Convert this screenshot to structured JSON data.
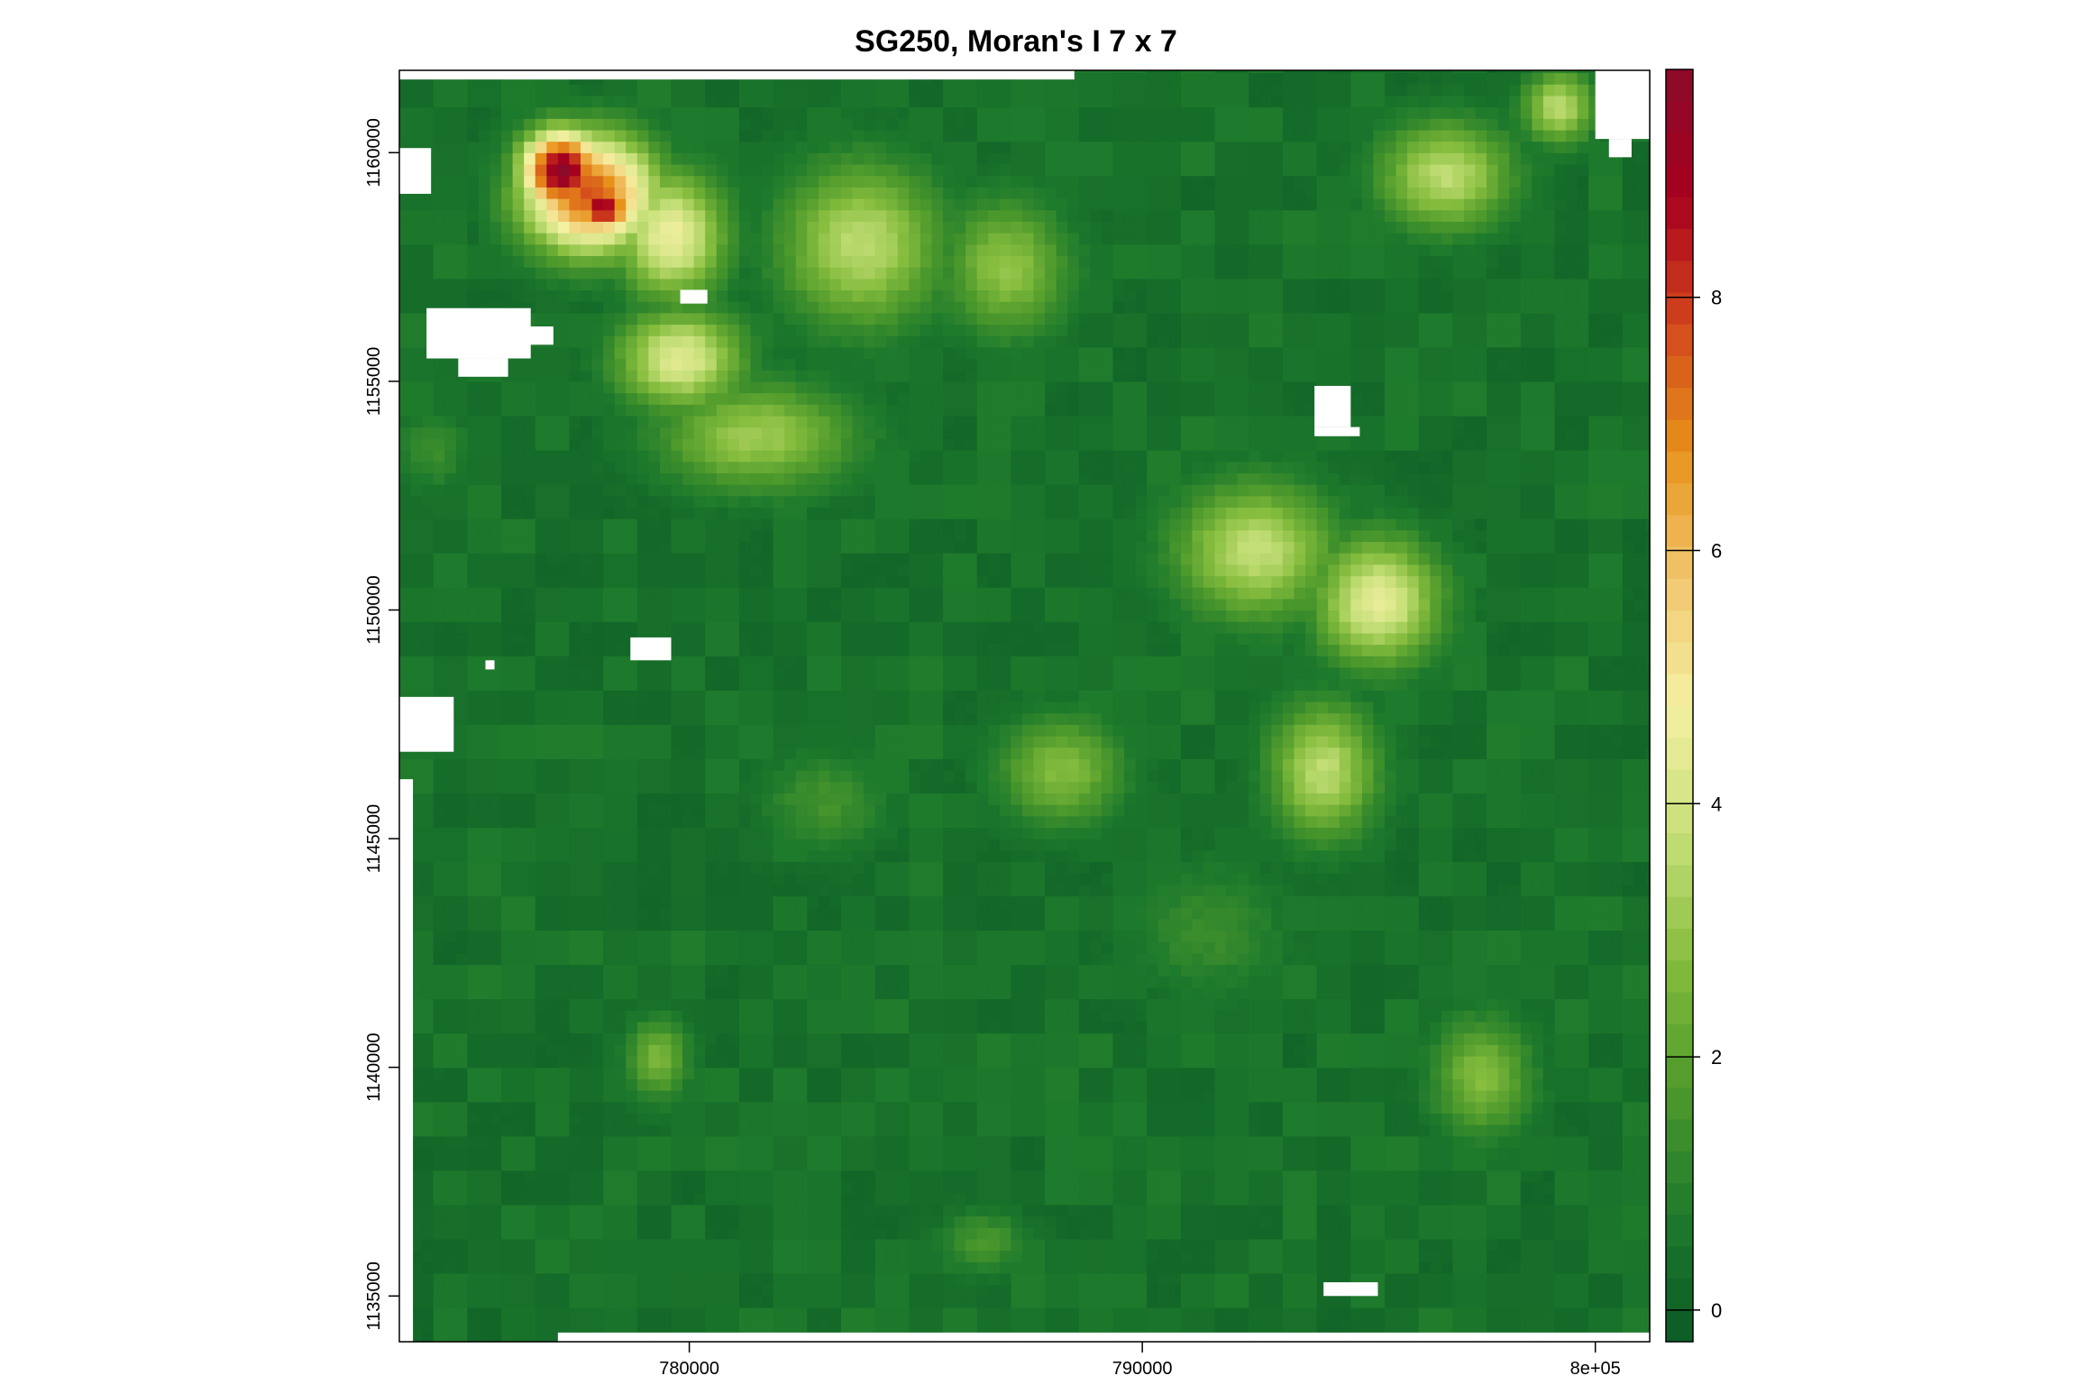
{
  "chart_data": {
    "type": "heatmap",
    "title": "SG250, Moran's I 7 x 7",
    "xlabel": "",
    "ylabel": "",
    "xlim": [
      773600,
      801200
    ],
    "ylim": [
      1134000,
      1161800
    ],
    "x_ticks": [
      {
        "value": 780000,
        "label": "780000"
      },
      {
        "value": 790000,
        "label": "790000"
      },
      {
        "value": 800000,
        "label": "8e+05"
      }
    ],
    "y_ticks": [
      {
        "value": 1135000,
        "label": "1135000"
      },
      {
        "value": 1140000,
        "label": "1140000"
      },
      {
        "value": 1145000,
        "label": "1145000"
      },
      {
        "value": 1150000,
        "label": "1150000"
      },
      {
        "value": 1155000,
        "label": "1155000"
      },
      {
        "value": 1160000,
        "label": "1160000"
      }
    ],
    "colorbar": {
      "range": [
        -0.25,
        9.8
      ],
      "ticks": [
        {
          "value": 0,
          "label": "0"
        },
        {
          "value": 2,
          "label": "2"
        },
        {
          "value": 4,
          "label": "4"
        },
        {
          "value": 6,
          "label": "6"
        },
        {
          "value": 8,
          "label": "8"
        }
      ],
      "palette": [
        "#0b5a26",
        "#1e7a2c",
        "#4e9a2c",
        "#86bd3e",
        "#c7e07a",
        "#f4f0a2",
        "#f1c66e",
        "#e8921a",
        "#d2461c",
        "#a8001e",
        "#8b0a2a"
      ]
    },
    "grid": false,
    "legend": "right",
    "hotspots": [
      {
        "x": 777200,
        "y": 1159600,
        "value": 9.6,
        "sx": 900,
        "sy": 900
      },
      {
        "x": 778100,
        "y": 1158800,
        "value": 9.0,
        "sx": 700,
        "sy": 600
      },
      {
        "x": 777800,
        "y": 1159100,
        "value": 7.5,
        "sx": 1500,
        "sy": 1300
      },
      {
        "x": 779600,
        "y": 1158200,
        "value": 4.5,
        "sx": 1200,
        "sy": 1400
      },
      {
        "x": 779800,
        "y": 1155500,
        "value": 4.2,
        "sx": 1400,
        "sy": 1100
      },
      {
        "x": 783800,
        "y": 1158000,
        "value": 3.5,
        "sx": 1800,
        "sy": 1800
      },
      {
        "x": 781500,
        "y": 1153800,
        "value": 3.0,
        "sx": 2200,
        "sy": 1200
      },
      {
        "x": 787000,
        "y": 1157500,
        "value": 2.8,
        "sx": 1400,
        "sy": 1500
      },
      {
        "x": 792500,
        "y": 1151300,
        "value": 3.6,
        "sx": 1800,
        "sy": 1500
      },
      {
        "x": 795200,
        "y": 1150200,
        "value": 4.3,
        "sx": 1400,
        "sy": 1400
      },
      {
        "x": 794000,
        "y": 1146500,
        "value": 3.5,
        "sx": 1200,
        "sy": 1500
      },
      {
        "x": 796700,
        "y": 1159500,
        "value": 3.5,
        "sx": 1500,
        "sy": 1200
      },
      {
        "x": 799200,
        "y": 1161000,
        "value": 3.5,
        "sx": 800,
        "sy": 800
      },
      {
        "x": 788200,
        "y": 1146500,
        "value": 2.6,
        "sx": 1400,
        "sy": 1200
      },
      {
        "x": 797500,
        "y": 1139800,
        "value": 2.6,
        "sx": 1100,
        "sy": 1300
      },
      {
        "x": 779300,
        "y": 1140200,
        "value": 2.4,
        "sx": 700,
        "sy": 900
      },
      {
        "x": 774300,
        "y": 1153500,
        "value": 1.2,
        "sx": 900,
        "sy": 900
      },
      {
        "x": 786500,
        "y": 1136200,
        "value": 1.5,
        "sx": 1000,
        "sy": 700
      },
      {
        "x": 783000,
        "y": 1145800,
        "value": 1.4,
        "sx": 1400,
        "sy": 1100
      },
      {
        "x": 791500,
        "y": 1143000,
        "value": 1.2,
        "sx": 1800,
        "sy": 1500
      }
    ],
    "no_data_cells": [
      {
        "x0": 773600,
        "x1": 788500,
        "y0": 1161600,
        "y1": 1161800
      },
      {
        "x0": 773600,
        "x1": 774300,
        "y0": 1159100,
        "y1": 1160100
      },
      {
        "x0": 774200,
        "x1": 776500,
        "y0": 1155500,
        "y1": 1156600
      },
      {
        "x0": 774900,
        "x1": 776000,
        "y0": 1155100,
        "y1": 1155500
      },
      {
        "x0": 776300,
        "x1": 777000,
        "y0": 1155800,
        "y1": 1156200
      },
      {
        "x0": 779800,
        "x1": 780400,
        "y0": 1156700,
        "y1": 1157000
      },
      {
        "x0": 773600,
        "x1": 774800,
        "y0": 1146900,
        "y1": 1148100
      },
      {
        "x0": 773600,
        "x1": 773900,
        "y0": 1134000,
        "y1": 1146300
      },
      {
        "x0": 778700,
        "x1": 779600,
        "y0": 1148900,
        "y1": 1149400
      },
      {
        "x0": 775500,
        "x1": 775700,
        "y0": 1148700,
        "y1": 1148900
      },
      {
        "x0": 777100,
        "x1": 801200,
        "y0": 1134000,
        "y1": 1134200
      },
      {
        "x0": 793800,
        "x1": 794600,
        "y0": 1154000,
        "y1": 1154900
      },
      {
        "x0": 793800,
        "x1": 794800,
        "y0": 1153800,
        "y1": 1154000
      },
      {
        "x0": 800000,
        "x1": 801200,
        "y0": 1160300,
        "y1": 1161800
      },
      {
        "x0": 800300,
        "x1": 800800,
        "y0": 1159900,
        "y1": 1160300
      },
      {
        "x0": 794000,
        "x1": 795200,
        "y0": 1135000,
        "y1": 1135300
      }
    ]
  }
}
